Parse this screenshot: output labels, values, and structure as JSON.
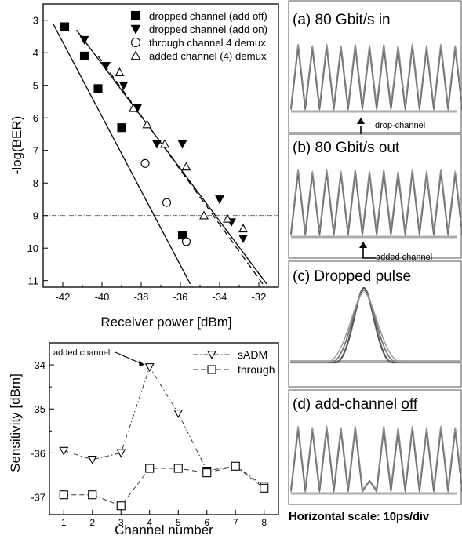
{
  "chart_data": [
    {
      "type": "scatter",
      "xlabel": "Receiver power [dBm]",
      "ylabel": "-log(BER)",
      "xlim": [
        -43,
        -31
      ],
      "ylim": [
        2.5,
        11.2
      ],
      "y_inverted": true,
      "x_ticks": [
        -42,
        -40,
        -38,
        -36,
        -34,
        -32
      ],
      "y_ticks": [
        3,
        4,
        5,
        6,
        7,
        8,
        9,
        10,
        11
      ],
      "legend_position": "top-right",
      "reference_line_y": 9,
      "series": [
        {
          "name": "dropped channel (add off)",
          "marker": "filled-square",
          "x": [
            -41.9,
            -40.9,
            -40.2,
            -39.0,
            -35.9
          ],
          "y": [
            3.2,
            4.1,
            5.1,
            6.3,
            9.6
          ]
        },
        {
          "name": "dropped channel (add on)",
          "marker": "filled-triangle-down",
          "x": [
            -40.9,
            -39.8,
            -38.9,
            -38.2,
            -37.2,
            -35.9,
            -34.0,
            -33.4,
            -32.8
          ],
          "y": [
            3.6,
            4.4,
            5.0,
            5.7,
            6.8,
            6.8,
            8.5,
            9.2,
            9.7
          ]
        },
        {
          "name": "through channel 4 demux",
          "marker": "open-circle",
          "x": [
            -37.8,
            -36.7,
            -35.7
          ],
          "y": [
            7.4,
            8.6,
            9.8
          ]
        },
        {
          "name": "added channel (4) demux",
          "marker": "open-triangle-up",
          "x": [
            -39.1,
            -38.4,
            -37.7,
            -36.8,
            -35.7,
            -34.8,
            -33.6,
            -32.8
          ],
          "y": [
            4.6,
            5.7,
            6.2,
            6.8,
            7.5,
            9.0,
            9.1,
            9.4
          ]
        }
      ],
      "fit_lines": [
        {
          "style": "solid",
          "from": [
            -42.5,
            3.1
          ],
          "to": [
            -35.5,
            11.1
          ]
        },
        {
          "style": "solid",
          "from": [
            -41.3,
            3.3
          ],
          "to": [
            -31.6,
            11.1
          ]
        },
        {
          "style": "dashed",
          "from": [
            -40.2,
            4.1
          ],
          "to": [
            -31.8,
            11.1
          ]
        }
      ]
    },
    {
      "type": "line",
      "xlabel": "Channel number",
      "ylabel": "Sensitivity [dBm]",
      "xlim": [
        0.5,
        8.5
      ],
      "ylim": [
        -37.4,
        -33.5
      ],
      "x_ticks": [
        1,
        2,
        3,
        4,
        5,
        6,
        7,
        8
      ],
      "y_ticks": [
        -34,
        -35,
        -36,
        -37
      ],
      "legend_position": "top-right",
      "categories": [
        1,
        2,
        3,
        4,
        5,
        6,
        7,
        8
      ],
      "series": [
        {
          "name": "sADM",
          "marker": "open-triangle-down",
          "style": "dash-dot",
          "values": [
            -35.95,
            -36.15,
            -36.0,
            -34.05,
            -35.1,
            -36.4,
            -36.3,
            -36.75
          ]
        },
        {
          "name": "through",
          "marker": "open-square",
          "style": "dashed",
          "values": [
            -36.95,
            -36.95,
            -37.2,
            -36.35,
            -36.35,
            -36.45,
            -36.3,
            -36.8
          ]
        }
      ],
      "annotations": [
        {
          "text": "added channel",
          "target_x": 4,
          "target_y": -34.05
        }
      ]
    }
  ],
  "panels": {
    "a": {
      "title": "(a) 80 Gbit/s in",
      "annotation": "drop-channel"
    },
    "b": {
      "title": "(b) 80 Gbit/s out",
      "annotation": "added channel"
    },
    "c": {
      "title": "(c) Dropped pulse"
    },
    "d": {
      "title_prefix": "(d) add-channel ",
      "title_underlined": "off"
    }
  },
  "footer": "Horizontal scale: 10ps/div"
}
